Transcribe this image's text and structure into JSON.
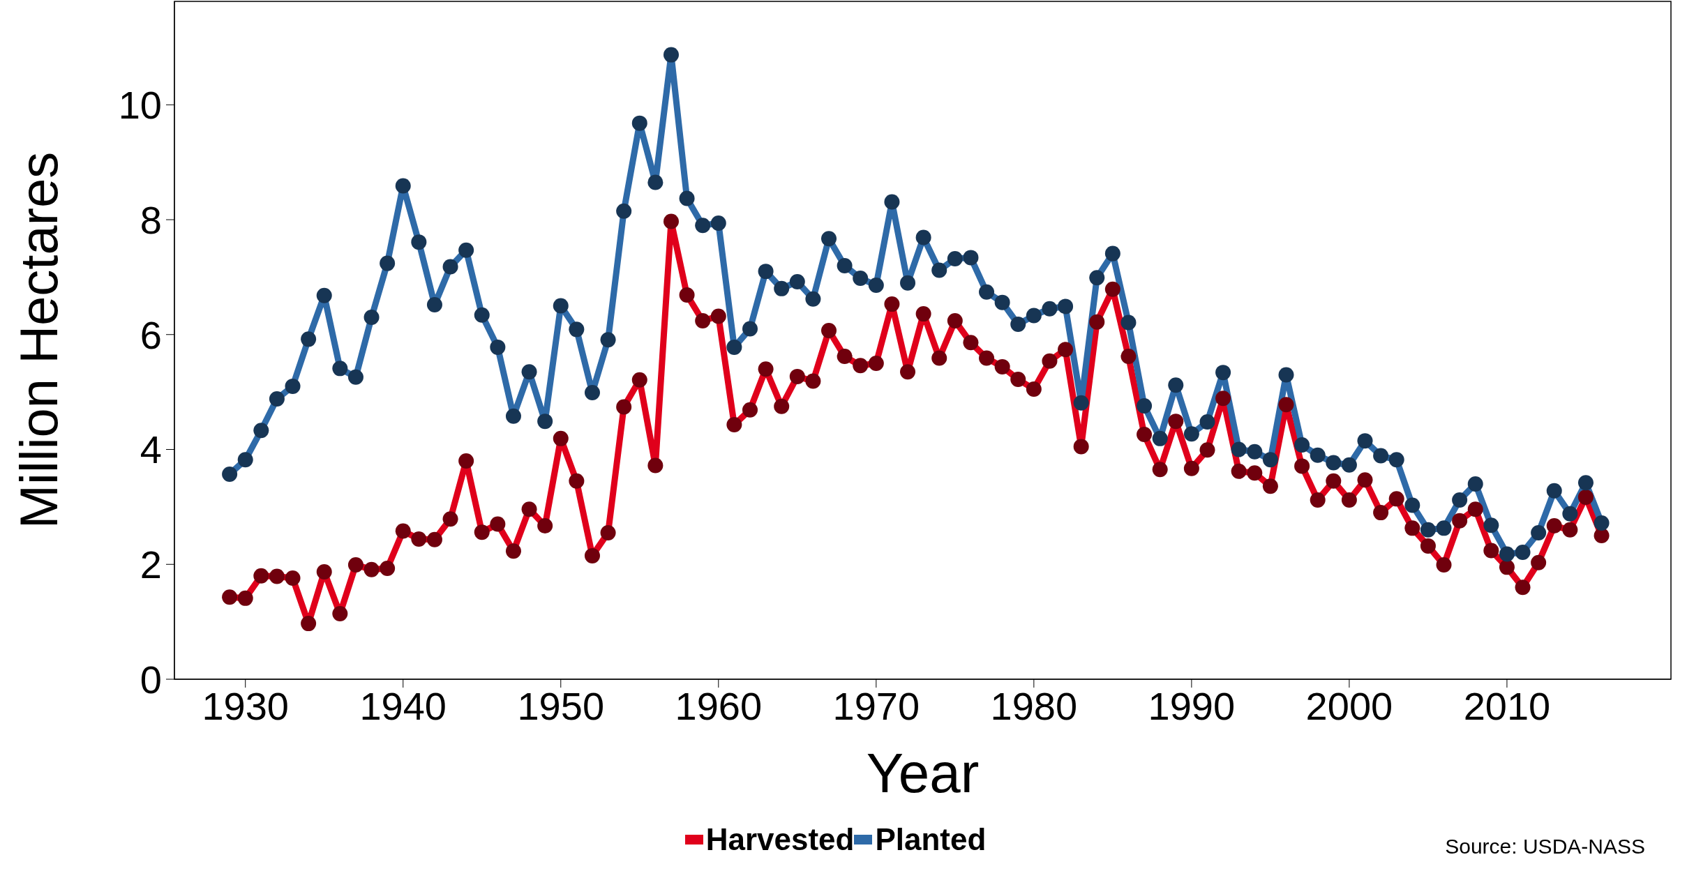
{
  "chart_data": {
    "type": "line",
    "xlabel": "Year",
    "ylabel": "Million Hectares",
    "annotations": [
      "Source: USDA-NASS"
    ],
    "x": [
      1929,
      1930,
      1931,
      1932,
      1933,
      1934,
      1935,
      1936,
      1937,
      1938,
      1939,
      1940,
      1941,
      1942,
      1943,
      1944,
      1945,
      1946,
      1947,
      1948,
      1949,
      1950,
      1951,
      1952,
      1953,
      1954,
      1955,
      1956,
      1957,
      1958,
      1959,
      1960,
      1961,
      1962,
      1963,
      1964,
      1965,
      1966,
      1967,
      1968,
      1969,
      1970,
      1971,
      1972,
      1973,
      1974,
      1975,
      1976,
      1977,
      1978,
      1979,
      1980,
      1981,
      1982,
      1983,
      1984,
      1985,
      1986,
      1987,
      1988,
      1989,
      1990,
      1991,
      1992,
      1993,
      1994,
      1995,
      1996,
      1997,
      1998,
      1999,
      2000,
      2001,
      2002,
      2003,
      2004,
      2005,
      2006,
      2007,
      2008,
      2009,
      2010,
      2011,
      2012,
      2013,
      2014,
      2015,
      2016
    ],
    "series": [
      {
        "name": "Harvested",
        "color": "#e0001b",
        "values": [
          1.43,
          1.41,
          1.8,
          1.79,
          1.76,
          0.97,
          1.87,
          1.14,
          1.99,
          1.91,
          1.93,
          2.58,
          2.44,
          2.43,
          2.79,
          3.8,
          2.56,
          2.7,
          2.23,
          2.96,
          2.67,
          4.19,
          3.45,
          2.15,
          2.55,
          4.74,
          5.21,
          3.72,
          7.97,
          6.69,
          6.24,
          6.32,
          4.43,
          4.69,
          5.4,
          4.75,
          5.27,
          5.19,
          6.07,
          5.62,
          5.46,
          5.5,
          6.53,
          5.35,
          6.36,
          5.59,
          6.24,
          5.86,
          5.59,
          5.44,
          5.22,
          5.05,
          5.54,
          5.74,
          4.05,
          6.22,
          6.79,
          5.62,
          4.26,
          3.65,
          4.49,
          3.67,
          3.99,
          4.89,
          3.62,
          3.59,
          3.36,
          4.78,
          3.71,
          3.12,
          3.45,
          3.12,
          3.47,
          2.9,
          3.14,
          2.63,
          2.32,
          1.99,
          2.76,
          2.96,
          2.24,
          1.95,
          1.6,
          2.03,
          2.67,
          2.6,
          3.17,
          2.5
        ]
      },
      {
        "name": "Planted",
        "color": "#2e6aa8",
        "values": [
          3.57,
          3.82,
          4.33,
          4.88,
          5.1,
          5.92,
          6.68,
          5.41,
          5.26,
          6.3,
          7.24,
          8.59,
          7.61,
          6.52,
          7.18,
          7.47,
          6.34,
          5.78,
          4.58,
          5.35,
          4.49,
          6.5,
          6.09,
          4.99,
          5.91,
          8.15,
          9.68,
          8.65,
          10.87,
          8.37,
          7.9,
          7.94,
          5.78,
          6.1,
          7.1,
          6.8,
          6.92,
          6.62,
          7.67,
          7.2,
          6.98,
          6.86,
          8.31,
          6.9,
          7.69,
          7.12,
          7.32,
          7.34,
          6.74,
          6.56,
          6.18,
          6.33,
          6.45,
          6.49,
          4.81,
          6.99,
          7.41,
          6.21,
          4.76,
          4.19,
          5.12,
          4.27,
          4.48,
          5.34,
          4.0,
          3.96,
          3.82,
          5.3,
          4.08,
          3.9,
          3.77,
          3.73,
          4.15,
          3.89,
          3.82,
          3.03,
          2.6,
          2.63,
          3.12,
          3.4,
          2.68,
          2.18,
          2.21,
          2.55,
          3.28,
          2.88,
          3.42,
          2.72
        ]
      }
    ],
    "xlim": [
      1925.5,
      2020.4
    ],
    "xticks": [
      1930,
      1940,
      1950,
      1960,
      1970,
      1980,
      1990,
      2000,
      2010
    ],
    "ylim": [
      0,
      11.8
    ],
    "yticks": [
      0,
      2,
      4,
      6,
      8,
      10
    ],
    "grid": false,
    "legend": "bottom",
    "marker": "circle",
    "line_style": "solid"
  }
}
